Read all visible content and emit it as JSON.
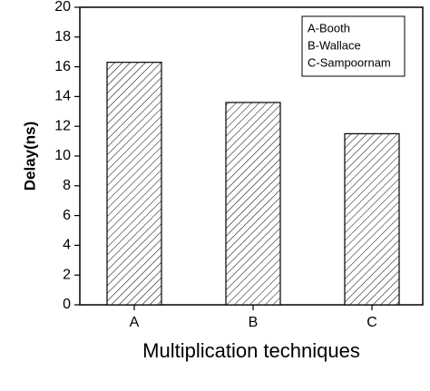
{
  "chart_data": {
    "type": "bar",
    "y_label": "Delay(ns)",
    "x_label": "Multiplication techniques",
    "categories": [
      "A",
      "B",
      "C"
    ],
    "values": [
      16.3,
      13.6,
      11.5
    ],
    "color": "#000000",
    "ylim": [
      0,
      20
    ],
    "yticks": [
      0,
      2,
      4,
      6,
      8,
      10,
      12,
      14,
      16,
      18,
      20
    ],
    "legend": {
      "position": "upper right",
      "entries": [
        "A-Booth",
        "B-Wallace",
        "C-Sampoornam"
      ]
    }
  }
}
